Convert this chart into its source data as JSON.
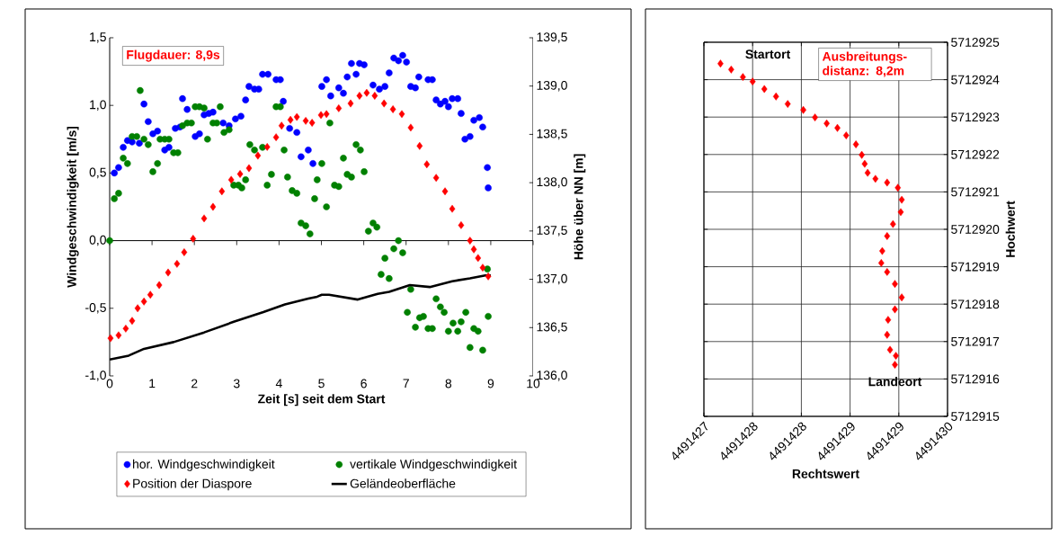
{
  "chart_data": [
    {
      "type": "scatter",
      "xlabel": "Zeit [s] seit dem Start",
      "ylabel": "Windgeschwindigkeit [m/s]",
      "y2label": "Höhe über NN [m]",
      "xlim": [
        0,
        10
      ],
      "xticks": [
        0,
        1,
        2,
        3,
        4,
        5,
        6,
        7,
        8,
        9,
        10
      ],
      "ylim": [
        -1,
        1.5
      ],
      "yticks": [
        {
          "value": -1,
          "label": "-1,0"
        },
        {
          "value": -0.5,
          "label": "-0,5"
        },
        {
          "value": 0,
          "label": "0,0"
        },
        {
          "value": 0.5,
          "label": "0,5"
        },
        {
          "value": 1,
          "label": "1,0"
        },
        {
          "value": 1.5,
          "label": "1,5"
        }
      ],
      "y2lim": [
        136,
        139.5
      ],
      "y2ticks": [
        {
          "value": 136,
          "label": "136,0"
        },
        {
          "value": 136.5,
          "label": "136,5"
        },
        {
          "value": 137,
          "label": "137,0"
        },
        {
          "value": 137.5,
          "label": "137,5"
        },
        {
          "value": 138,
          "label": "138,0"
        },
        {
          "value": 138.5,
          "label": "138,5"
        },
        {
          "value": 139,
          "label": "139,0"
        },
        {
          "value": 139.5,
          "label": "139,5"
        }
      ],
      "legend": "bottom",
      "annotations": [
        "Flugdauer: 8,9s"
      ],
      "series": [
        {
          "name": "hor. Windgeschwindigkeit",
          "type": "scatter",
          "marker": "circle",
          "color": "#0000ff",
          "x": [
            0.11,
            0.21,
            0.32,
            0.42,
            0.53,
            0.7,
            0.81,
            0.91,
            1.02,
            1.13,
            1.3,
            1.4,
            1.55,
            1.66,
            1.72,
            1.83,
            2.02,
            2.12,
            2.23,
            2.34,
            2.44,
            2.68,
            2.82,
            2.97,
            3.1,
            3.21,
            3.29,
            3.42,
            3.52,
            3.61,
            3.74,
            3.93,
            4.03,
            4.1,
            4.25,
            4.42,
            4.52,
            4.69,
            4.8,
            5.01,
            5.12,
            5.22,
            5.41,
            5.52,
            5.61,
            5.71,
            5.82,
            5.9,
            6.01,
            6.22,
            6.37,
            6.5,
            6.6,
            6.71,
            6.82,
            6.92,
            7.01,
            7.11,
            7.22,
            7.3,
            7.52,
            7.62,
            7.71,
            7.81,
            7.92,
            8.0,
            8.09,
            8.22,
            8.3,
            8.39,
            8.51,
            8.6,
            8.73,
            8.81,
            8.92,
            8.94
          ],
          "values": [
            0.5,
            0.54,
            0.69,
            0.74,
            0.73,
            0.72,
            1.01,
            0.88,
            0.79,
            0.81,
            0.67,
            0.69,
            0.83,
            0.84,
            1.05,
            0.97,
            0.77,
            0.79,
            0.93,
            0.94,
            0.95,
            0.87,
            0.85,
            0.9,
            0.92,
            1.04,
            1.14,
            1.12,
            1.12,
            1.23,
            1.23,
            1.19,
            1.19,
            1.03,
            0.83,
            0.8,
            0.62,
            0.67,
            0.57,
            1.14,
            1.19,
            1.07,
            1.13,
            1.09,
            1.21,
            1.31,
            1.23,
            1.31,
            1.3,
            1.15,
            1.12,
            1.14,
            1.24,
            1.35,
            1.33,
            1.37,
            1.32,
            1.14,
            1.13,
            1.21,
            1.19,
            1.19,
            1.04,
            1.01,
            1.03,
            0.99,
            1.05,
            1.05,
            0.94,
            0.75,
            0.77,
            0.89,
            0.91,
            0.84,
            0.54,
            0.39
          ]
        },
        {
          "name": "vertikale Windgeschwindigkeit",
          "type": "scatter",
          "marker": "circle",
          "color": "#008000",
          "x": [
            0.0,
            0.11,
            0.21,
            0.32,
            0.42,
            0.53,
            0.64,
            0.72,
            0.81,
            0.91,
            1.02,
            1.13,
            1.19,
            1.3,
            1.4,
            1.51,
            1.61,
            1.72,
            1.83,
            1.93,
            2.02,
            2.12,
            2.23,
            2.31,
            2.44,
            2.53,
            2.61,
            2.7,
            2.82,
            2.93,
            3.04,
            3.12,
            3.21,
            3.31,
            3.42,
            3.61,
            3.72,
            3.82,
            3.93,
            4.03,
            4.12,
            4.2,
            4.31,
            4.42,
            4.52,
            4.63,
            4.73,
            4.84,
            4.9,
            5.01,
            5.12,
            5.2,
            5.31,
            5.41,
            5.52,
            5.61,
            5.71,
            5.82,
            5.92,
            6.01,
            6.11,
            6.22,
            6.31,
            6.41,
            6.5,
            6.6,
            6.71,
            6.82,
            6.92,
            7.03,
            7.11,
            7.22,
            7.32,
            7.41,
            7.52,
            7.62,
            7.71,
            7.81,
            7.9,
            8.0,
            8.11,
            8.22,
            8.3,
            8.41,
            8.51,
            8.6,
            8.7,
            8.81,
            8.92,
            8.94
          ],
          "values": [
            0.0,
            0.31,
            0.35,
            0.61,
            0.57,
            0.77,
            0.77,
            1.11,
            0.75,
            0.71,
            0.51,
            0.57,
            0.75,
            0.75,
            0.75,
            0.65,
            0.65,
            0.85,
            0.87,
            0.87,
            0.99,
            0.99,
            0.98,
            0.75,
            0.87,
            0.87,
            0.99,
            0.8,
            0.82,
            0.41,
            0.41,
            0.39,
            0.45,
            0.71,
            0.67,
            0.69,
            0.41,
            0.49,
            0.99,
            0.99,
            0.67,
            0.47,
            0.37,
            0.35,
            0.13,
            0.11,
            0.05,
            0.31,
            0.45,
            0.57,
            0.25,
            0.87,
            0.41,
            0.4,
            0.61,
            0.49,
            0.47,
            0.71,
            0.67,
            0.51,
            0.07,
            0.13,
            0.1,
            -0.25,
            -0.13,
            -0.28,
            -0.06,
            0.0,
            -0.09,
            -0.53,
            -0.36,
            -0.64,
            -0.57,
            -0.56,
            -0.65,
            -0.65,
            -0.43,
            -0.49,
            -0.53,
            -0.67,
            -0.61,
            -0.67,
            -0.6,
            -0.53,
            -0.79,
            -0.65,
            -0.67,
            -0.81,
            -0.21,
            -0.56
          ]
        },
        {
          "name": "Position der Diaspore",
          "type": "scatter",
          "marker": "diamond",
          "axis": "y2",
          "color": "#ff0000",
          "x": [
            0.02,
            0.21,
            0.38,
            0.53,
            0.66,
            0.81,
            0.96,
            1.17,
            1.38,
            1.59,
            1.76,
            1.97,
            2.23,
            2.44,
            2.65,
            2.87,
            3.08,
            3.29,
            3.5,
            3.72,
            3.93,
            4.06,
            4.27,
            4.42,
            4.63,
            4.78,
            4.99,
            5.12,
            5.41,
            5.69,
            5.9,
            6.07,
            6.26,
            6.48,
            6.69,
            6.9,
            7.11,
            7.32,
            7.49,
            7.71,
            7.92,
            8.09,
            8.3,
            8.51,
            8.6,
            8.7,
            8.81,
            8.94
          ],
          "values": [
            136.39,
            136.42,
            136.49,
            136.57,
            136.7,
            136.77,
            136.84,
            136.94,
            137.07,
            137.16,
            137.28,
            137.42,
            137.63,
            137.75,
            137.91,
            138.03,
            138.09,
            138.15,
            138.28,
            138.37,
            138.47,
            138.59,
            138.65,
            138.68,
            138.64,
            138.62,
            138.7,
            138.71,
            138.77,
            138.82,
            138.9,
            138.93,
            138.9,
            138.82,
            138.76,
            138.71,
            138.57,
            138.38,
            138.19,
            138.05,
            137.91,
            137.73,
            137.56,
            137.4,
            137.31,
            137.22,
            137.12,
            137.03
          ]
        },
        {
          "name": "Geländeoberfläche",
          "type": "line",
          "marker": "none",
          "axis": "y2",
          "color": "#000000",
          "x": [
            0.0,
            0.45,
            0.81,
            1.51,
            2.23,
            2.93,
            3.63,
            4.14,
            4.69,
            4.9,
            5.01,
            5.18,
            5.86,
            6.33,
            6.6,
            7.09,
            7.56,
            8.09,
            8.51,
            8.87,
            9.0
          ],
          "values": [
            136.17,
            136.21,
            136.28,
            136.35,
            136.45,
            136.56,
            136.66,
            136.74,
            136.8,
            136.82,
            136.84,
            136.84,
            136.79,
            136.85,
            136.87,
            136.94,
            136.92,
            136.98,
            137.01,
            137.04,
            137.04
          ]
        }
      ]
    },
    {
      "type": "scatter",
      "marker": "diamond",
      "color": "#ff0000",
      "xlabel": "Rechtswert",
      "ylabel": "Hochwert",
      "grid": true,
      "xlim": [
        4491427,
        4491429.5
      ],
      "xticks": [
        {
          "value": 4491427,
          "label": "4491427"
        },
        {
          "value": 4491427.5,
          "label": "4491428"
        },
        {
          "value": 4491428,
          "label": "4491428"
        },
        {
          "value": 4491428.5,
          "label": "4491429"
        },
        {
          "value": 4491429,
          "label": "4491429"
        },
        {
          "value": 4491429.5,
          "label": "4491430"
        }
      ],
      "ylim": [
        5712915,
        5712925
      ],
      "yticks": [
        5712915,
        5712916,
        5712917,
        5712918,
        5712919,
        5712920,
        5712921,
        5712922,
        5712923,
        5712924,
        5712925
      ],
      "annotations": [
        "Ausbreitungs-distanz: 8,2m",
        {
          "text": "Startort",
          "x": 4491427.17,
          "y": 5712924.43
        },
        {
          "text": "Landeort",
          "x": 4491428.96,
          "y": 5712916.38
        }
      ],
      "x": [
        4491427.17,
        4491427.28,
        4491427.4,
        4491427.5,
        4491427.62,
        4491427.74,
        4491427.86,
        4491428.02,
        4491428.14,
        4491428.26,
        4491428.37,
        4491428.46,
        4491428.56,
        4491428.62,
        4491428.65,
        4491428.68,
        4491428.76,
        4491428.88,
        4491428.99,
        4491429.03,
        4491429.02,
        4491428.94,
        4491428.88,
        4491428.83,
        4491428.82,
        4491428.88,
        4491428.96,
        4491429.03,
        4491428.96,
        4491428.89,
        4491428.88,
        4491428.91,
        4491428.97,
        4491428.96
      ],
      "values": [
        5712924.43,
        5712924.27,
        5712924.07,
        5712923.95,
        5712923.75,
        5712923.55,
        5712923.35,
        5712923.19,
        5712922.99,
        5712922.83,
        5712922.71,
        5712922.51,
        5712922.27,
        5712921.99,
        5712921.75,
        5712921.51,
        5712921.35,
        5712921.25,
        5712921.11,
        5712920.79,
        5712920.46,
        5712920.14,
        5712919.82,
        5712919.42,
        5712919.1,
        5712918.86,
        5712918.54,
        5712918.18,
        5712917.86,
        5712917.58,
        5712917.18,
        5712916.78,
        5712916.62,
        5712916.38
      ]
    }
  ]
}
